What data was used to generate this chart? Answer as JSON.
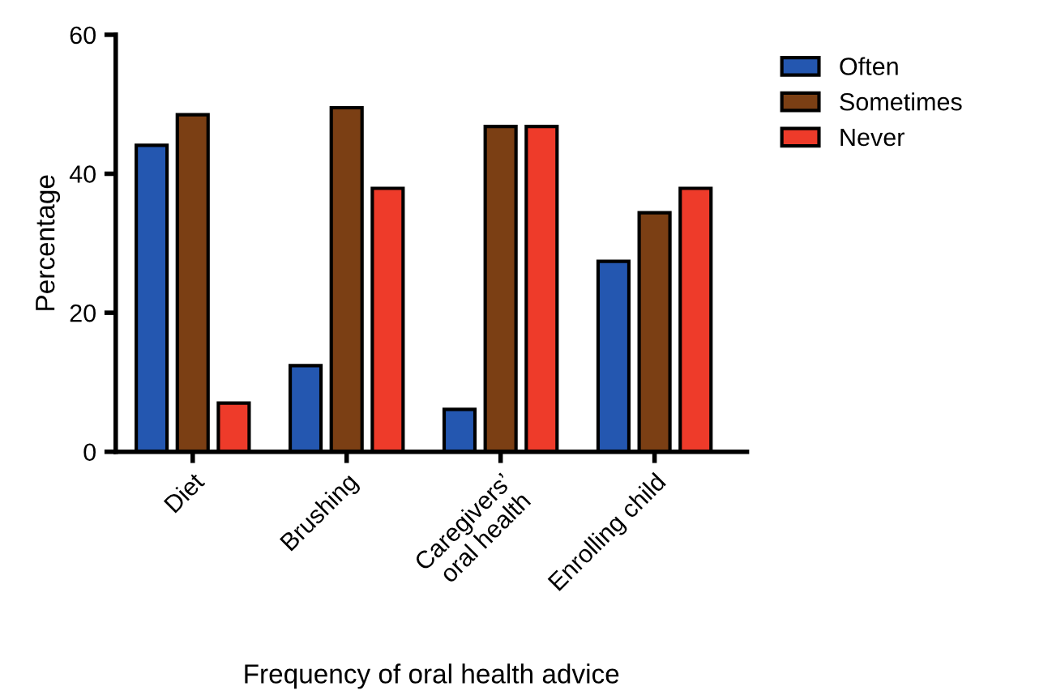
{
  "chart_data": {
    "type": "bar",
    "xlabel": "Frequency of oral health advice",
    "ylabel": "Percentage",
    "categories": [
      "Diet",
      "Brushing",
      "Caregivers’\noral health",
      "Enrolling child"
    ],
    "series": [
      {
        "name": "Often",
        "color": "#2457b0",
        "values": [
          44.1,
          12.4,
          6.1,
          27.4
        ]
      },
      {
        "name": "Sometimes",
        "color": "#7b3f14",
        "values": [
          48.5,
          49.5,
          46.8,
          34.4
        ]
      },
      {
        "name": "Never",
        "color": "#ee3b2a",
        "values": [
          7.0,
          37.9,
          46.8,
          37.9
        ]
      }
    ],
    "ylim": [
      0,
      60
    ],
    "yticks": [
      0,
      20,
      40,
      60
    ],
    "grid": false,
    "legend": "top right"
  }
}
